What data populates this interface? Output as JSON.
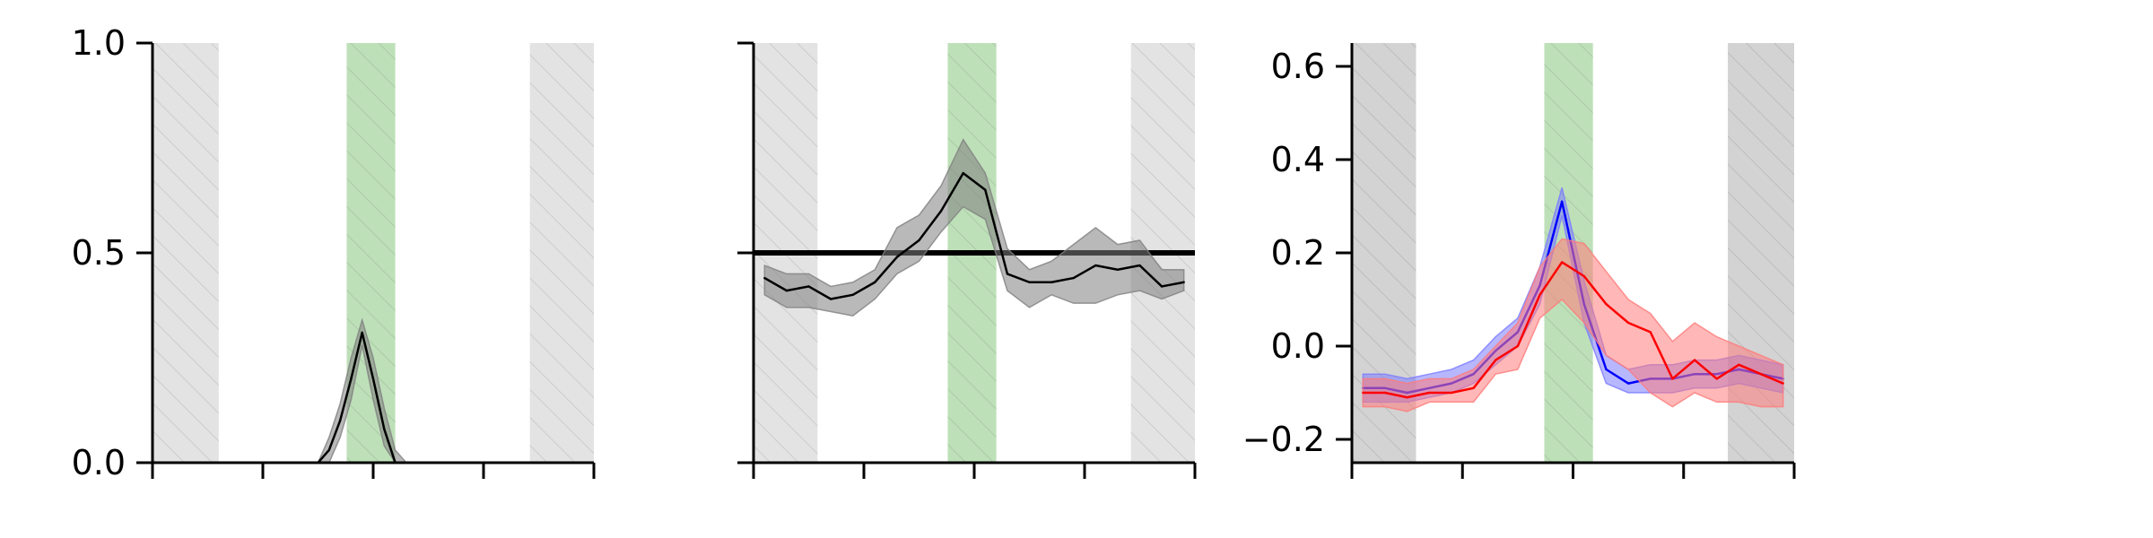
{
  "colors": {
    "background": "#ffffff",
    "gray_band": "#d9d9d9",
    "green_band": "#a8d5a2",
    "black_line": "#000000",
    "black_fill": "#808080",
    "blue_line": "#0000ff",
    "blue_fill": "#7b7bff",
    "red_line": "#ff0000",
    "red_fill": "#ff7b7b"
  },
  "chart_data": [
    {
      "type": "line",
      "xlim": [
        0,
        20
      ],
      "ylim": [
        0,
        1
      ],
      "yticks": [
        0,
        0.5,
        1
      ],
      "ytick_labels": [
        "0.0",
        "0.5",
        "1.0"
      ],
      "xticks": [
        0,
        5,
        10,
        15,
        20
      ],
      "xtick_labels": [
        "",
        "",
        "",
        "",
        ""
      ],
      "bands": [
        {
          "x0": 0,
          "x1": 3,
          "color": "gray"
        },
        {
          "x0": 8.8,
          "x1": 11,
          "color": "green"
        },
        {
          "x0": 17.1,
          "x1": 20,
          "color": "gray"
        }
      ],
      "series": [
        {
          "color": "black",
          "x": [
            7,
            7.5,
            8,
            8.5,
            9,
            9.5,
            10,
            10.5,
            11,
            11.5,
            12
          ],
          "y": [
            0,
            0,
            0.03,
            0.1,
            0.2,
            0.31,
            0.2,
            0.08,
            0,
            0,
            0
          ],
          "lower": [
            0,
            0,
            0,
            0.06,
            0.15,
            0.28,
            0.15,
            0.04,
            0,
            0,
            0
          ],
          "upper": [
            0,
            0,
            0.06,
            0.14,
            0.25,
            0.34,
            0.25,
            0.13,
            0.03,
            0,
            0
          ]
        }
      ]
    },
    {
      "type": "line",
      "xlim": [
        0,
        20
      ],
      "ylim": [
        0,
        1
      ],
      "yticks": [
        0,
        0.5,
        1
      ],
      "ytick_labels": [
        "",
        "",
        ""
      ],
      "xticks": [
        0,
        5,
        10,
        15,
        20
      ],
      "xtick_labels": [
        "",
        "",
        "",
        "",
        ""
      ],
      "hline": 0.5,
      "bands": [
        {
          "x0": 0,
          "x1": 2.9,
          "color": "gray"
        },
        {
          "x0": 8.8,
          "x1": 11,
          "color": "green"
        },
        {
          "x0": 17.1,
          "x1": 20,
          "color": "gray"
        }
      ],
      "series": [
        {
          "color": "black",
          "x": [
            0.5,
            1.5,
            2.5,
            3.5,
            4.5,
            5.5,
            6.5,
            7.5,
            8.5,
            9.5,
            10.5,
            11.5,
            12.5,
            13.5,
            14.5,
            15.5,
            16.5,
            17.5,
            18.5,
            19.5
          ],
          "y": [
            0.44,
            0.41,
            0.42,
            0.39,
            0.4,
            0.43,
            0.49,
            0.53,
            0.6,
            0.69,
            0.65,
            0.45,
            0.43,
            0.43,
            0.44,
            0.47,
            0.46,
            0.47,
            0.42,
            0.43
          ],
          "lower": [
            0.4,
            0.37,
            0.37,
            0.36,
            0.35,
            0.39,
            0.45,
            0.48,
            0.55,
            0.61,
            0.58,
            0.41,
            0.37,
            0.4,
            0.38,
            0.38,
            0.4,
            0.41,
            0.39,
            0.41
          ],
          "upper": [
            0.47,
            0.45,
            0.45,
            0.42,
            0.43,
            0.46,
            0.56,
            0.59,
            0.66,
            0.77,
            0.69,
            0.51,
            0.46,
            0.48,
            0.52,
            0.56,
            0.52,
            0.53,
            0.46,
            0.46
          ]
        }
      ]
    },
    {
      "type": "line",
      "xlim": [
        0,
        20
      ],
      "ylim": [
        -0.25,
        0.65
      ],
      "yticks": [
        -0.2,
        0,
        0.2,
        0.4,
        0.6
      ],
      "ytick_labels": [
        "−0.2",
        "0.0",
        "0.2",
        "0.4",
        "0.6"
      ],
      "xticks": [
        0,
        5,
        10,
        15,
        20
      ],
      "xtick_labels": [
        "",
        "",
        "",
        "",
        ""
      ],
      "bands": [
        {
          "x0": 0,
          "x1": 2.9,
          "color": "gray_dark"
        },
        {
          "x0": 8.7,
          "x1": 10.9,
          "color": "green"
        },
        {
          "x0": 17,
          "x1": 20,
          "color": "gray_dark"
        }
      ],
      "series": [
        {
          "color": "blue",
          "x": [
            0.5,
            1.5,
            2.5,
            3.5,
            4.5,
            5.5,
            6.5,
            7.5,
            8.5,
            9.5,
            10.5,
            11.5,
            12.5,
            13.5,
            14.5,
            15.5,
            16.5,
            17.5,
            18.5,
            19.5
          ],
          "y": [
            -0.09,
            -0.09,
            -0.1,
            -0.09,
            -0.08,
            -0.06,
            -0.01,
            0.03,
            0.13,
            0.31,
            0.09,
            -0.05,
            -0.08,
            -0.07,
            -0.07,
            -0.06,
            -0.06,
            -0.05,
            -0.06,
            -0.07
          ],
          "lower": [
            -0.12,
            -0.12,
            -0.12,
            -0.11,
            -0.1,
            -0.08,
            -0.04,
            0,
            0.09,
            0.28,
            0.05,
            -0.08,
            -0.1,
            -0.1,
            -0.1,
            -0.09,
            -0.09,
            -0.08,
            -0.09,
            -0.1
          ],
          "upper": [
            -0.06,
            -0.06,
            -0.07,
            -0.06,
            -0.05,
            -0.03,
            0.02,
            0.06,
            0.17,
            0.34,
            0.14,
            -0.02,
            -0.05,
            -0.04,
            -0.04,
            -0.03,
            -0.03,
            -0.02,
            -0.03,
            -0.04
          ]
        },
        {
          "color": "red",
          "x": [
            0.5,
            1.5,
            2.5,
            3.5,
            4.5,
            5.5,
            6.5,
            7.5,
            8.5,
            9.5,
            10.5,
            11.5,
            12.5,
            13.5,
            14.5,
            15.5,
            16.5,
            17.5,
            18.5,
            19.5
          ],
          "y": [
            -0.1,
            -0.1,
            -0.11,
            -0.1,
            -0.1,
            -0.09,
            -0.03,
            0,
            0.11,
            0.18,
            0.15,
            0.09,
            0.05,
            0.03,
            -0.07,
            -0.03,
            -0.07,
            -0.04,
            -0.06,
            -0.08
          ],
          "lower": [
            -0.13,
            -0.13,
            -0.14,
            -0.12,
            -0.12,
            -0.12,
            -0.06,
            -0.05,
            0.06,
            0.1,
            0.05,
            -0.02,
            -0.05,
            -0.1,
            -0.13,
            -0.1,
            -0.12,
            -0.12,
            -0.13,
            -0.13
          ],
          "upper": [
            -0.07,
            -0.07,
            -0.08,
            -0.07,
            -0.07,
            -0.05,
            0,
            0.05,
            0.17,
            0.23,
            0.22,
            0.16,
            0.1,
            0.07,
            0.01,
            0.05,
            0.02,
            0,
            -0.02,
            -0.04
          ]
        }
      ]
    }
  ]
}
